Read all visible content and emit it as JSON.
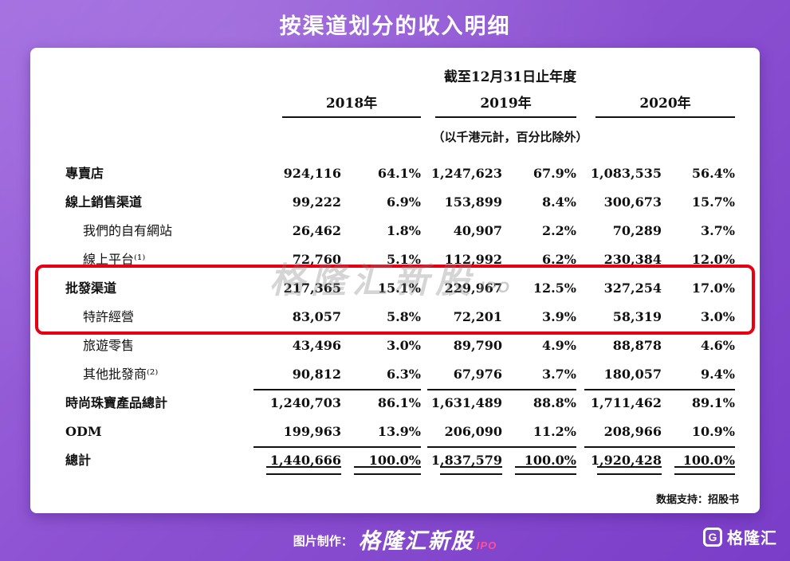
{
  "title": "按渠道划分的收入明细",
  "colors": {
    "background_start": "#a26ce0",
    "background_end": "#7a3dc8",
    "card_bg": "#ffffff",
    "text": "#111111",
    "highlight_border": "#e60012",
    "accent_pink": "#ff4f9a"
  },
  "chart_data": {
    "type": "table",
    "title": "按渠道划分的收入明细",
    "period_header": "截至12月31日止年度",
    "unit_note": "（以千港元計，百分比除外）",
    "years": [
      "2018年",
      "2019年",
      "2020年"
    ],
    "rows": [
      {
        "label": "專賣店",
        "indent": false,
        "highlighted": true,
        "values": [
          "924,116",
          "64.1%",
          "1,247,623",
          "67.9%",
          "1,083,535",
          "56.4%"
        ]
      },
      {
        "label": "線上銷售渠道",
        "indent": false,
        "highlighted": true,
        "values": [
          "99,222",
          "6.9%",
          "153,899",
          "8.4%",
          "300,673",
          "15.7%"
        ]
      },
      {
        "label": "我們的自有網站",
        "indent": true,
        "highlighted": false,
        "values": [
          "26,462",
          "1.8%",
          "40,907",
          "2.2%",
          "70,289",
          "3.7%"
        ]
      },
      {
        "label": "線上平台⁽¹⁾",
        "indent": true,
        "highlighted": false,
        "values": [
          "72,760",
          "5.1%",
          "112,992",
          "6.2%",
          "230,384",
          "12.0%"
        ]
      },
      {
        "label": "批發渠道",
        "indent": false,
        "highlighted": false,
        "values": [
          "217,365",
          "15.1%",
          "229,967",
          "12.5%",
          "327,254",
          "17.0%"
        ]
      },
      {
        "label": "特許經營",
        "indent": true,
        "highlighted": false,
        "values": [
          "83,057",
          "5.8%",
          "72,201",
          "3.9%",
          "58,319",
          "3.0%"
        ]
      },
      {
        "label": "旅遊零售",
        "indent": true,
        "highlighted": false,
        "values": [
          "43,496",
          "3.0%",
          "89,790",
          "4.9%",
          "88,878",
          "4.6%"
        ]
      },
      {
        "label": "其他批發商⁽²⁾",
        "indent": true,
        "highlighted": false,
        "values": [
          "90,812",
          "6.3%",
          "67,976",
          "3.7%",
          "180,057",
          "9.4%"
        ]
      },
      {
        "label": "時尚珠寶產品總計",
        "indent": false,
        "highlighted": false,
        "values": [
          "1,240,703",
          "86.1%",
          "1,631,489",
          "88.8%",
          "1,711,462",
          "89.1%"
        ]
      },
      {
        "label": "ODM",
        "indent": false,
        "highlighted": false,
        "values": [
          "199,963",
          "13.9%",
          "206,090",
          "11.2%",
          "208,966",
          "10.9%"
        ]
      },
      {
        "label": "總計",
        "indent": false,
        "highlighted": false,
        "values": [
          "1,440,666",
          "100.0%",
          "1,837,579",
          "100.0%",
          "1,920,428",
          "100.0%"
        ]
      }
    ],
    "source_note": "数据支持：招股书"
  },
  "watermark": {
    "brand": "格隆汇新股",
    "suffix": "IPO"
  },
  "footer": {
    "caption": "图片制作：",
    "brand": "格隆汇新股",
    "brand_suffix": "IPO",
    "logo_letter": "G",
    "logo_label": "格隆汇"
  }
}
